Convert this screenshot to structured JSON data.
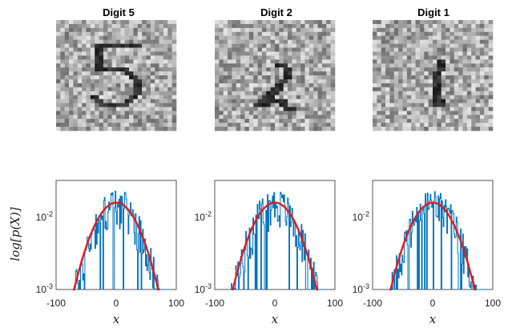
{
  "figure": {
    "panels": [
      {
        "title": "Digit 5",
        "digit": 5
      },
      {
        "title": "Digit 2",
        "digit": 2
      },
      {
        "title": "Digit 1",
        "digit": 1
      }
    ],
    "xlabel": "x",
    "ylabel": "log[p(X)]",
    "colors": {
      "histogram": "#0072BD",
      "fit": "#E01B1B",
      "axes": "#262626"
    }
  },
  "chart_data": [
    {
      "type": "line",
      "title": "",
      "xlabel": "x",
      "ylabel": "log[p(X)]",
      "yscale": "log",
      "xlim": [
        -100,
        100
      ],
      "ylim": [
        0.001,
        0.025
      ],
      "xticks": [
        "-100",
        "0",
        "100"
      ],
      "yticks": [
        "10^-3",
        "10^-2"
      ],
      "series": [
        {
          "kind": "histogram",
          "x": [
            -80,
            -60,
            -40,
            -30,
            -20,
            -10,
            0,
            10,
            20,
            30,
            40,
            60,
            80
          ],
          "y": [
            0.001,
            0.0015,
            0.005,
            0.008,
            0.011,
            0.013,
            0.013,
            0.012,
            0.011,
            0.008,
            0.005,
            0.002,
            0.001
          ]
        },
        {
          "kind": "gaussian-fit",
          "mean": 0,
          "peak": 0.013,
          "x": [
            -70,
            -50,
            -30,
            0,
            30,
            50,
            70
          ],
          "y": [
            0.001,
            0.0028,
            0.0072,
            0.013,
            0.0072,
            0.0028,
            0.001
          ]
        }
      ]
    },
    {
      "type": "line",
      "title": "",
      "xlabel": "x",
      "ylabel": "",
      "yscale": "log",
      "xlim": [
        -100,
        100
      ],
      "ylim": [
        0.001,
        0.025
      ],
      "xticks": [
        "-100",
        "0",
        "100"
      ],
      "yticks": [
        "10^-2",
        "10^-3"
      ],
      "series": [
        {
          "kind": "histogram",
          "x": [
            -80,
            -60,
            -40,
            -20,
            -10,
            0,
            10,
            20,
            40,
            60,
            80
          ],
          "y": [
            0.001,
            0.002,
            0.006,
            0.011,
            0.013,
            0.013,
            0.012,
            0.011,
            0.006,
            0.002,
            0.001
          ]
        },
        {
          "kind": "gaussian-fit",
          "mean": 0,
          "peak": 0.013,
          "x": [
            -70,
            -50,
            -30,
            0,
            30,
            50,
            70
          ],
          "y": [
            0.001,
            0.0028,
            0.0072,
            0.013,
            0.0072,
            0.0028,
            0.001
          ]
        }
      ]
    },
    {
      "type": "line",
      "title": "",
      "xlabel": "x",
      "ylabel": "",
      "yscale": "log",
      "xlim": [
        -100,
        100
      ],
      "ylim": [
        0.001,
        0.025
      ],
      "xticks": [
        "-100",
        "0",
        "100"
      ],
      "yticks": [
        "10^-2",
        "10^-3"
      ],
      "series": [
        {
          "kind": "histogram",
          "x": [
            -80,
            -60,
            -40,
            -20,
            -10,
            0,
            10,
            20,
            40,
            60,
            80
          ],
          "y": [
            0.001,
            0.002,
            0.0065,
            0.011,
            0.013,
            0.013,
            0.012,
            0.011,
            0.0065,
            0.002,
            0.001
          ]
        },
        {
          "kind": "gaussian-fit",
          "mean": 0,
          "peak": 0.013,
          "x": [
            -70,
            -50,
            -30,
            0,
            30,
            50,
            70
          ],
          "y": [
            0.001,
            0.0028,
            0.0072,
            0.013,
            0.0072,
            0.0028,
            0.001
          ]
        }
      ]
    }
  ]
}
